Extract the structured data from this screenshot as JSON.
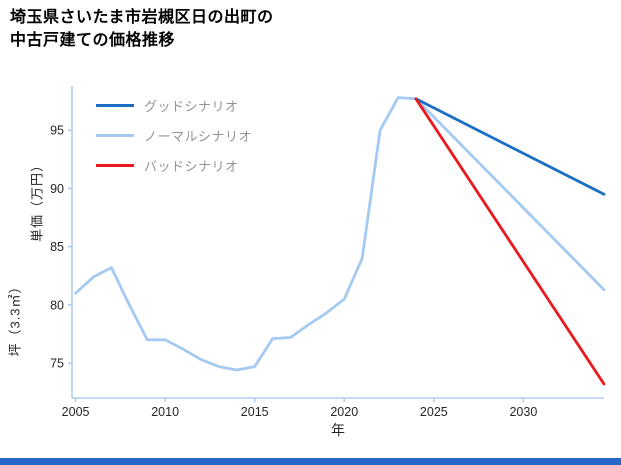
{
  "page": {
    "title_line1": "埼玉県さいたま市岩槻区日の出町の",
    "title_line2": "中古戸建ての価格推移",
    "accent_bar_color": "#2668c8"
  },
  "chart_data": {
    "type": "line",
    "title": "埼玉県さいたま市岩槻区日の出町の中古戸建ての価格推移",
    "xlabel": "年",
    "ylabel": "坪（3.3㎡）単価（万円）",
    "ylabel_line1": "坪（3.3㎡）",
    "ylabel_line2": "単価（万円）",
    "xlim": [
      2004.8,
      2034.5
    ],
    "ylim": [
      72,
      98.8
    ],
    "xticks": [
      2005,
      2010,
      2015,
      2020,
      2025,
      2030
    ],
    "yticks": [
      75,
      80,
      85,
      90,
      95
    ],
    "grid": false,
    "legend_position": "upper-left",
    "axis_color": "#aecdf0",
    "tick_label_color": "#262626",
    "series": [
      {
        "name": "グッドシナリオ",
        "color": "#1b6ec2",
        "x": [
          2024,
          2034.5
        ],
        "y": [
          97.7,
          89.5
        ]
      },
      {
        "name": "ノーマルシナリオ",
        "color": "#a4caf2",
        "x": [
          2005,
          2006,
          2007,
          2008,
          2009,
          2010,
          2011,
          2012,
          2013,
          2014,
          2015,
          2016,
          2017,
          2018,
          2019,
          2020,
          2021,
          2022,
          2023,
          2024,
          2034.5
        ],
        "y": [
          81,
          82.4,
          83.2,
          80,
          77,
          77,
          76.2,
          75.3,
          74.7,
          74.4,
          74.7,
          77.1,
          77.2,
          78.3,
          79.3,
          80.5,
          84,
          95,
          97.8,
          97.7,
          81.3
        ]
      },
      {
        "name": "バッドシナリオ",
        "color": "#e8191f",
        "x": [
          2024,
          2034.5
        ],
        "y": [
          97.7,
          73.2
        ]
      }
    ]
  }
}
